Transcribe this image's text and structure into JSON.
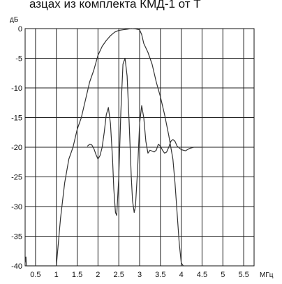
{
  "caption": "азцах из комплекта КМД-1 от Т",
  "chart_data": {
    "type": "line",
    "title": "",
    "xlabel": "МГц",
    "ylabel": "дБ",
    "xlim": [
      0.25,
      5.75
    ],
    "ylim": [
      -40,
      0
    ],
    "x_ticks": [
      "0.5",
      "1",
      "1.5",
      "2",
      "2.5",
      "3",
      "3.5",
      "4",
      "4.5",
      "5",
      "5.5"
    ],
    "y_ticks": [
      "0",
      "-5",
      "-10",
      "-15",
      "-20",
      "-25",
      "-30",
      "-35",
      "-40"
    ],
    "grid": true,
    "series": [
      {
        "values": [
          [
            0.25,
            -39.5
          ],
          [
            0.27,
            -38.5
          ],
          [
            0.28,
            -40
          ],
          [
            1.0,
            -40
          ],
          [
            1.1,
            -32
          ],
          [
            1.2,
            -26
          ],
          [
            1.3,
            -22
          ],
          [
            1.4,
            -20
          ],
          [
            1.5,
            -17
          ],
          [
            1.6,
            -15
          ],
          [
            1.7,
            -12
          ],
          [
            1.8,
            -9
          ],
          [
            1.9,
            -7
          ],
          [
            2.0,
            -4.5
          ],
          [
            2.1,
            -3
          ],
          [
            2.2,
            -2
          ],
          [
            2.3,
            -1.2
          ],
          [
            2.4,
            -0.6
          ],
          [
            2.5,
            -0.3
          ],
          [
            2.6,
            -0.2
          ],
          [
            2.7,
            -0.1
          ],
          [
            2.75,
            -0.05
          ],
          [
            2.8,
            0
          ],
          [
            2.9,
            -0.05
          ],
          [
            3.0,
            -0.2
          ],
          [
            3.05,
            -1
          ],
          [
            3.1,
            -2.5
          ],
          [
            3.2,
            -4
          ],
          [
            3.3,
            -6
          ],
          [
            3.4,
            -9
          ],
          [
            3.5,
            -11.5
          ],
          [
            3.6,
            -14.5
          ],
          [
            3.7,
            -18
          ],
          [
            3.8,
            -22
          ],
          [
            3.85,
            -26
          ],
          [
            3.9,
            -31
          ],
          [
            3.95,
            -36
          ],
          [
            4.0,
            -39.5
          ],
          [
            4.05,
            -40
          ]
        ],
        "color": "#333333"
      },
      {
        "values": [
          [
            1.75,
            -19.8
          ],
          [
            1.8,
            -19.5
          ],
          [
            1.85,
            -19.6
          ],
          [
            1.9,
            -20.2
          ],
          [
            1.95,
            -21.2
          ],
          [
            2.0,
            -22
          ],
          [
            2.05,
            -21.4
          ],
          [
            2.1,
            -20
          ],
          [
            2.15,
            -17.5
          ],
          [
            2.2,
            -14.5
          ],
          [
            2.25,
            -13.3
          ],
          [
            2.3,
            -16
          ],
          [
            2.35,
            -22
          ],
          [
            2.38,
            -27
          ],
          [
            2.42,
            -31
          ],
          [
            2.45,
            -31.5
          ],
          [
            2.5,
            -25
          ],
          [
            2.55,
            -14
          ],
          [
            2.6,
            -6
          ],
          [
            2.65,
            -5
          ],
          [
            2.7,
            -8
          ],
          [
            2.75,
            -16
          ],
          [
            2.8,
            -25
          ],
          [
            2.83,
            -29
          ],
          [
            2.87,
            -31
          ],
          [
            2.9,
            -30
          ],
          [
            2.95,
            -24
          ],
          [
            3.0,
            -16
          ],
          [
            3.05,
            -13
          ],
          [
            3.1,
            -15
          ],
          [
            3.15,
            -19
          ],
          [
            3.2,
            -21
          ],
          [
            3.25,
            -20.5
          ],
          [
            3.35,
            -20.8
          ],
          [
            3.4,
            -20.5
          ],
          [
            3.45,
            -19.5
          ],
          [
            3.5,
            -19.8
          ],
          [
            3.55,
            -20.5
          ],
          [
            3.6,
            -21
          ],
          [
            3.65,
            -20.8
          ],
          [
            3.7,
            -20
          ],
          [
            3.75,
            -19
          ],
          [
            3.8,
            -18.7
          ],
          [
            3.85,
            -19
          ],
          [
            3.9,
            -19.8
          ],
          [
            4.0,
            -20.4
          ],
          [
            4.1,
            -20.6
          ],
          [
            4.2,
            -20.2
          ],
          [
            4.3,
            -20
          ],
          [
            4.4,
            -20
          ],
          [
            4.5,
            -20
          ]
        ],
        "color": "#333333"
      }
    ]
  }
}
